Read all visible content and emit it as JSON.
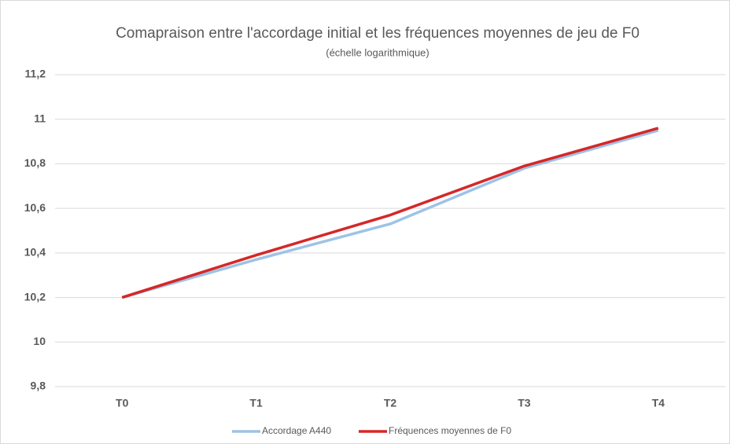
{
  "chart_data": {
    "type": "line",
    "title": "Comapraison entre l'accordage initial et les fréquences moyennes de jeu de F0",
    "subtitle": "(échelle logarithmique)",
    "categories": [
      "T0",
      "T1",
      "T2",
      "T3",
      "T4"
    ],
    "series": [
      {
        "name": "Accordage A440",
        "color": "#9dc3e6",
        "values": [
          10.2,
          10.37,
          10.53,
          10.78,
          10.95
        ]
      },
      {
        "name": "Fréquences moyennes de F0",
        "color": "#d62728",
        "values": [
          10.2,
          10.39,
          10.57,
          10.79,
          10.96
        ]
      }
    ],
    "ylim": [
      9.8,
      11.2
    ],
    "yticks": [
      {
        "value": 9.8,
        "label": "9,8"
      },
      10,
      {
        "value": 10.2,
        "label": "10,2"
      },
      {
        "value": 10.4,
        "label": "10,4"
      },
      {
        "value": 10.6,
        "label": "10,6"
      },
      {
        "value": 10.8,
        "label": "10,8"
      },
      11,
      {
        "value": 11.2,
        "label": "11,2"
      }
    ],
    "grid": true,
    "legend": "bottom"
  }
}
